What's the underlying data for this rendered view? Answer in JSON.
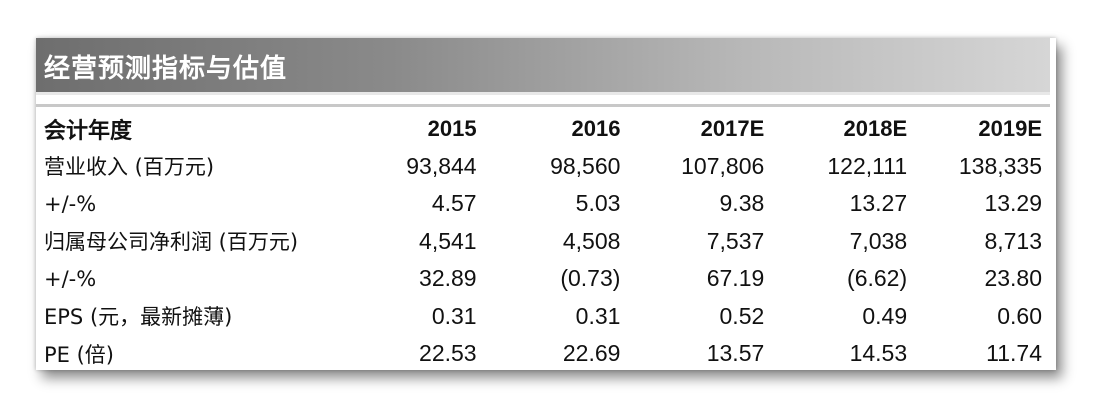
{
  "title": "经营预测指标与估值",
  "columns": [
    "会计年度",
    "2015",
    "2016",
    "2017E",
    "2018E",
    "2019E"
  ],
  "rows": [
    {
      "label": "营业收入 (百万元)",
      "values": [
        "93,844",
        "98,560",
        "107,806",
        "122,111",
        "138,335"
      ]
    },
    {
      "label": "+/-%",
      "values": [
        "4.57",
        "5.03",
        "9.38",
        "13.27",
        "13.29"
      ]
    },
    {
      "label": "归属母公司净利润 (百万元)",
      "values": [
        "4,541",
        "4,508",
        "7,537",
        "7,038",
        "8,713"
      ]
    },
    {
      "label": "+/-%",
      "values": [
        "32.89",
        "(0.73)",
        "67.19",
        "(6.62)",
        "23.80"
      ]
    },
    {
      "label": "EPS (元，最新摊薄)",
      "values": [
        "0.31",
        "0.31",
        "0.52",
        "0.49",
        "0.60"
      ]
    },
    {
      "label": "PE (倍)",
      "values": [
        "22.53",
        "22.69",
        "13.57",
        "14.53",
        "11.74"
      ]
    }
  ],
  "colors": {
    "title_bar_start": "#6e6e6e",
    "title_bar_end": "#d6d6d6",
    "title_text": "#ffffff",
    "text": "#111111"
  }
}
